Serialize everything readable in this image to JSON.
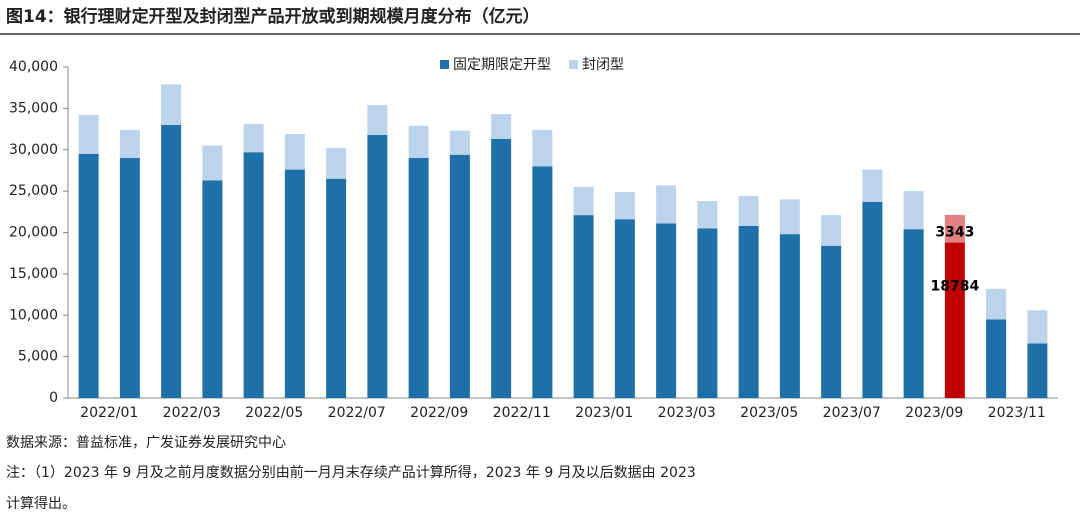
{
  "title": "图14：银行理财定开型及封闭型产品开放或到期规模月度分布（亿元）",
  "chart_data": {
    "type": "stacked_bar",
    "categories": [
      "2022/01",
      null,
      "2022/03",
      null,
      "2022/05",
      null,
      "2022/07",
      null,
      "2022/09",
      null,
      "2022/11",
      null,
      "2023/01",
      null,
      "2023/03",
      null,
      "2023/05",
      null,
      "2023/07",
      null,
      "2023/09",
      null,
      "2023/11",
      null
    ],
    "series": [
      {
        "name": "固定期限定开型",
        "color": "#1f6fa8",
        "colors": [
          "#1f6fa8",
          "#1f6fa8",
          "#1f6fa8",
          "#1f6fa8",
          "#1f6fa8",
          "#1f6fa8",
          "#1f6fa8",
          "#1f6fa8",
          "#1f6fa8",
          "#1f6fa8",
          "#1f6fa8",
          "#1f6fa8",
          "#1f6fa8",
          "#1f6fa8",
          "#1f6fa8",
          "#1f6fa8",
          "#1f6fa8",
          "#1f6fa8",
          "#1f6fa8",
          "#1f6fa8",
          "#1f6fa8",
          "#c00000",
          "#1f6fa8",
          "#1f6fa8"
        ],
        "values": [
          29500,
          29000,
          33000,
          26300,
          29700,
          27600,
          26500,
          31800,
          29000,
          29400,
          31300,
          28000,
          22100,
          21600,
          21100,
          20500,
          20800,
          19800,
          18400,
          23700,
          20400,
          18784,
          9500,
          6600
        ],
        "value_labels": [
          null,
          null,
          null,
          null,
          null,
          null,
          null,
          null,
          null,
          null,
          null,
          null,
          null,
          null,
          null,
          null,
          null,
          null,
          null,
          null,
          null,
          "18784",
          null,
          null
        ]
      },
      {
        "name": "封闭型",
        "color": "#bcd3ec",
        "colors": [
          "#bcd3ec",
          "#bcd3ec",
          "#bcd3ec",
          "#bcd3ec",
          "#bcd3ec",
          "#bcd3ec",
          "#bcd3ec",
          "#bcd3ec",
          "#bcd3ec",
          "#bcd3ec",
          "#bcd3ec",
          "#bcd3ec",
          "#bcd3ec",
          "#bcd3ec",
          "#bcd3ec",
          "#bcd3ec",
          "#bcd3ec",
          "#bcd3ec",
          "#bcd3ec",
          "#bcd3ec",
          "#bcd3ec",
          "#e38080",
          "#bcd3ec",
          "#bcd3ec"
        ],
        "values": [
          4700,
          3400,
          4900,
          4200,
          3400,
          4300,
          3700,
          3600,
          3900,
          2900,
          3000,
          4400,
          3400,
          3300,
          4600,
          3300,
          3600,
          4200,
          3700,
          3900,
          4600,
          3343,
          3700,
          4000
        ],
        "value_labels": [
          null,
          null,
          null,
          null,
          null,
          null,
          null,
          null,
          null,
          null,
          null,
          null,
          null,
          null,
          null,
          null,
          null,
          null,
          null,
          null,
          null,
          "3343",
          null,
          null
        ]
      }
    ],
    "ylim": [
      0,
      40000
    ],
    "yticks": [
      0,
      {
        "value": 5000,
        "label": "5,000"
      },
      {
        "value": 10000,
        "label": "10,000"
      },
      {
        "value": 15000,
        "label": "15,000"
      },
      {
        "value": 20000,
        "label": "20,000"
      },
      {
        "value": 25000,
        "label": "25,000"
      },
      {
        "value": 30000,
        "label": "30,000"
      },
      {
        "value": 35000,
        "label": "35,000"
      },
      {
        "value": 40000,
        "label": "40,000"
      }
    ]
  },
  "source": "数据来源：普益标准，广发证券发展研究中心",
  "notes": [
    "注：（1）2023 年 9 月及之前月度数据分别由前一月月末存续产品计算所得，2023 年 9 月及以后数据由 2023",
    "计算得出。"
  ]
}
